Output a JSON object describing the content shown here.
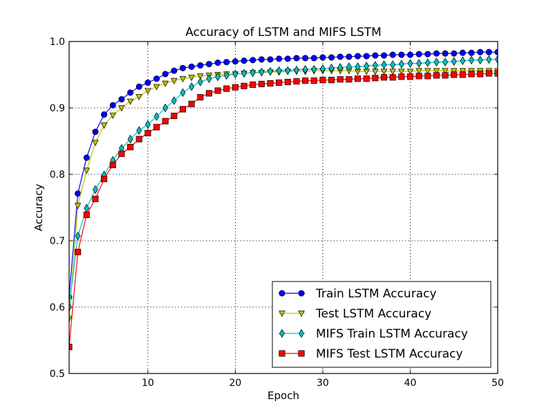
{
  "chart_data": {
    "type": "line",
    "title": "Accuracy of LSTM and MIFS LSTM",
    "xlabel": "Epoch",
    "ylabel": "Accuracy",
    "xlim": [
      1,
      50
    ],
    "ylim": [
      0.5,
      1.0
    ],
    "xticks": [
      10,
      20,
      30,
      40,
      50
    ],
    "yticks": [
      0.5,
      0.6,
      0.7,
      0.8,
      0.9,
      1.0
    ],
    "xtick_labels": [
      "10",
      "20",
      "30",
      "40",
      "50"
    ],
    "ytick_labels": [
      "0.5",
      "0.6",
      "0.7",
      "0.8",
      "0.9",
      "1.0"
    ],
    "grid": true,
    "legend_position": "lower-right",
    "x": [
      1,
      2,
      3,
      4,
      5,
      6,
      7,
      8,
      9,
      10,
      11,
      12,
      13,
      14,
      15,
      16,
      17,
      18,
      19,
      20,
      21,
      22,
      23,
      24,
      25,
      26,
      27,
      28,
      29,
      30,
      31,
      32,
      33,
      34,
      35,
      36,
      37,
      38,
      39,
      40,
      41,
      42,
      43,
      44,
      45,
      46,
      47,
      48,
      49,
      50
    ],
    "series": [
      {
        "name": "Train LSTM Accuracy",
        "color": "#0000ff",
        "marker": "circle",
        "values": [
          0.615,
          0.771,
          0.825,
          0.864,
          0.89,
          0.904,
          0.913,
          0.923,
          0.932,
          0.938,
          0.944,
          0.951,
          0.956,
          0.96,
          0.962,
          0.964,
          0.966,
          0.968,
          0.969,
          0.97,
          0.971,
          0.972,
          0.973,
          0.973,
          0.974,
          0.974,
          0.975,
          0.975,
          0.975,
          0.976,
          0.976,
          0.977,
          0.977,
          0.978,
          0.978,
          0.979,
          0.979,
          0.98,
          0.98,
          0.98,
          0.981,
          0.981,
          0.982,
          0.982,
          0.982,
          0.983,
          0.983,
          0.984,
          0.984,
          0.984
        ]
      },
      {
        "name": "Test LSTM Accuracy",
        "color": "#bfbf00",
        "marker": "triangle-down",
        "values": [
          0.583,
          0.753,
          0.806,
          0.848,
          0.874,
          0.889,
          0.9,
          0.91,
          0.917,
          0.926,
          0.932,
          0.937,
          0.941,
          0.944,
          0.946,
          0.948,
          0.949,
          0.95,
          0.951,
          0.951,
          0.952,
          0.953,
          0.953,
          0.954,
          0.954,
          0.955,
          0.955,
          0.955,
          0.956,
          0.956,
          0.956,
          0.956,
          0.956,
          0.955,
          0.955,
          0.955,
          0.955,
          0.955,
          0.955,
          0.955,
          0.956,
          0.956,
          0.956,
          0.956,
          0.956,
          0.956,
          0.956,
          0.956,
          0.956,
          0.956
        ]
      },
      {
        "name": "MIFS Train LSTM Accuracy",
        "color": "#00bfbf",
        "marker": "diamond",
        "values": [
          0.6,
          0.707,
          0.749,
          0.777,
          0.799,
          0.821,
          0.839,
          0.853,
          0.866,
          0.875,
          0.887,
          0.9,
          0.911,
          0.923,
          0.932,
          0.939,
          0.944,
          0.947,
          0.949,
          0.951,
          0.952,
          0.953,
          0.954,
          0.955,
          0.956,
          0.956,
          0.957,
          0.958,
          0.958,
          0.959,
          0.96,
          0.961,
          0.962,
          0.962,
          0.963,
          0.964,
          0.965,
          0.965,
          0.966,
          0.967,
          0.967,
          0.968,
          0.969,
          0.969,
          0.97,
          0.971,
          0.972,
          0.972,
          0.973,
          0.973
        ]
      },
      {
        "name": "MIFS Test LSTM Accuracy",
        "color": "#ff0000",
        "marker": "square",
        "values": [
          0.54,
          0.683,
          0.739,
          0.763,
          0.793,
          0.814,
          0.831,
          0.841,
          0.853,
          0.862,
          0.871,
          0.88,
          0.888,
          0.898,
          0.906,
          0.916,
          0.922,
          0.926,
          0.929,
          0.931,
          0.933,
          0.935,
          0.936,
          0.937,
          0.938,
          0.939,
          0.94,
          0.941,
          0.941,
          0.942,
          0.942,
          0.943,
          0.943,
          0.944,
          0.944,
          0.945,
          0.946,
          0.946,
          0.947,
          0.947,
          0.948,
          0.948,
          0.949,
          0.949,
          0.95,
          0.95,
          0.951,
          0.951,
          0.952,
          0.952
        ]
      }
    ]
  }
}
